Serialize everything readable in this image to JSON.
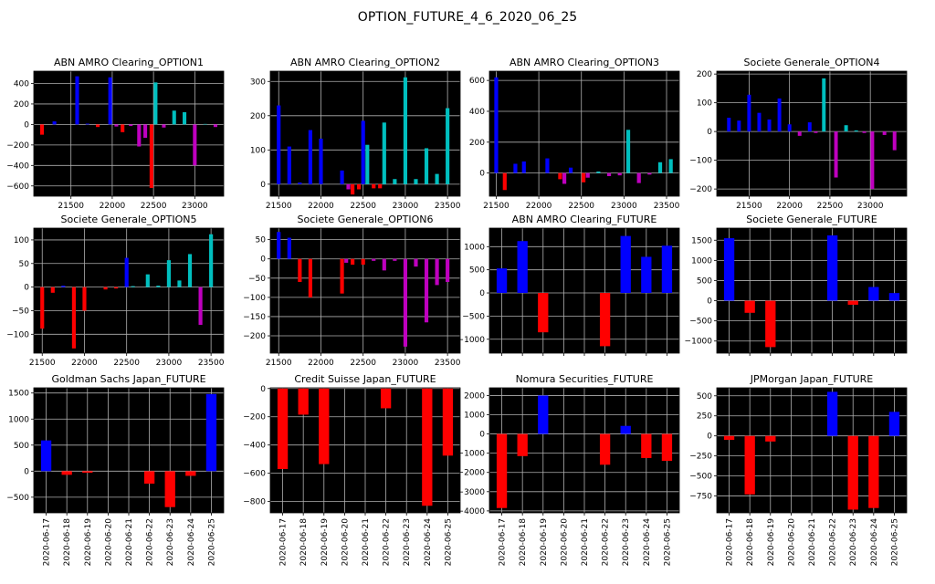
{
  "figure_title": "OPTION_FUTURE_4_6_2020_06_25",
  "colors": {
    "blue": "#0000ff",
    "red": "#ff0000",
    "magenta": "#bf00bf",
    "cyan": "#00bfbf",
    "background": "#000000",
    "grid": "#b0b0b0"
  },
  "chart_data": [
    {
      "type": "bar",
      "title": "ABN AMRO Clearing_OPTION1",
      "xlabel": "",
      "ylabel": "",
      "xlim": [
        21050,
        23350
      ],
      "ylim": [
        -700,
        520
      ],
      "bar_width": 45,
      "grid": true,
      "xticks": [
        21500,
        22000,
        22500,
        23000
      ],
      "yticks": [
        -600,
        -400,
        -200,
        0,
        200,
        400
      ],
      "bars": [
        {
          "x": 21150,
          "value": -100,
          "color": "red"
        },
        {
          "x": 21300,
          "value": 30,
          "color": "blue"
        },
        {
          "x": 21575,
          "value": 470,
          "color": "blue"
        },
        {
          "x": 21700,
          "value": 8,
          "color": "blue"
        },
        {
          "x": 21825,
          "value": -25,
          "color": "red"
        },
        {
          "x": 21975,
          "value": 460,
          "color": "blue"
        },
        {
          "x": 22050,
          "value": -20,
          "color": "magenta"
        },
        {
          "x": 22125,
          "value": -75,
          "color": "red"
        },
        {
          "x": 22225,
          "value": -15,
          "color": "magenta"
        },
        {
          "x": 22325,
          "value": -215,
          "color": "magenta"
        },
        {
          "x": 22400,
          "value": -130,
          "color": "magenta"
        },
        {
          "x": 22475,
          "value": -620,
          "color": "red"
        },
        {
          "x": 22525,
          "value": 410,
          "color": "cyan"
        },
        {
          "x": 22625,
          "value": -30,
          "color": "magenta"
        },
        {
          "x": 22750,
          "value": 135,
          "color": "cyan"
        },
        {
          "x": 22875,
          "value": 120,
          "color": "cyan"
        },
        {
          "x": 23000,
          "value": -400,
          "color": "magenta"
        },
        {
          "x": 23125,
          "value": 5,
          "color": "cyan"
        },
        {
          "x": 23250,
          "value": -25,
          "color": "magenta"
        }
      ]
    },
    {
      "type": "bar",
      "title": "ABN AMRO Clearing_OPTION2",
      "xlabel": "",
      "ylabel": "",
      "xlim": [
        21400,
        23650
      ],
      "ylim": [
        -35,
        330
      ],
      "bar_width": 45,
      "grid": true,
      "xticks": [
        21500,
        22000,
        22500,
        23000,
        23500
      ],
      "yticks": [
        0,
        100,
        200,
        300
      ],
      "bars": [
        {
          "x": 21500,
          "value": 230,
          "color": "blue"
        },
        {
          "x": 21625,
          "value": 110,
          "color": "blue"
        },
        {
          "x": 21750,
          "value": 5,
          "color": "blue"
        },
        {
          "x": 21875,
          "value": 158,
          "color": "blue"
        },
        {
          "x": 22000,
          "value": 133,
          "color": "blue"
        },
        {
          "x": 22250,
          "value": 40,
          "color": "blue"
        },
        {
          "x": 22325,
          "value": -15,
          "color": "magenta"
        },
        {
          "x": 22375,
          "value": -30,
          "color": "red"
        },
        {
          "x": 22450,
          "value": -15,
          "color": "red"
        },
        {
          "x": 22500,
          "value": 185,
          "color": "blue"
        },
        {
          "x": 22550,
          "value": 115,
          "color": "cyan"
        },
        {
          "x": 22625,
          "value": -12,
          "color": "red"
        },
        {
          "x": 22700,
          "value": -12,
          "color": "red"
        },
        {
          "x": 22750,
          "value": 180,
          "color": "cyan"
        },
        {
          "x": 22875,
          "value": 15,
          "color": "cyan"
        },
        {
          "x": 23000,
          "value": 312,
          "color": "cyan"
        },
        {
          "x": 23125,
          "value": 15,
          "color": "cyan"
        },
        {
          "x": 23250,
          "value": 105,
          "color": "cyan"
        },
        {
          "x": 23375,
          "value": 30,
          "color": "cyan"
        },
        {
          "x": 23500,
          "value": 222,
          "color": "cyan"
        }
      ]
    },
    {
      "type": "bar",
      "title": "ABN AMRO Clearing_OPTION3",
      "xlabel": "",
      "ylabel": "",
      "xlim": [
        21420,
        23650
      ],
      "ylim": [
        -150,
        660
      ],
      "bar_width": 45,
      "grid": true,
      "xticks": [
        21500,
        22000,
        22500,
        23000,
        23500
      ],
      "yticks": [
        0,
        200,
        400,
        600
      ],
      "bars": [
        {
          "x": 21500,
          "value": 620,
          "color": "blue"
        },
        {
          "x": 21600,
          "value": -110,
          "color": "red"
        },
        {
          "x": 21725,
          "value": 60,
          "color": "blue"
        },
        {
          "x": 21825,
          "value": 75,
          "color": "blue"
        },
        {
          "x": 22100,
          "value": 95,
          "color": "blue"
        },
        {
          "x": 22250,
          "value": -40,
          "color": "red"
        },
        {
          "x": 22300,
          "value": -70,
          "color": "magenta"
        },
        {
          "x": 22375,
          "value": 35,
          "color": "blue"
        },
        {
          "x": 22525,
          "value": -60,
          "color": "red"
        },
        {
          "x": 22575,
          "value": -30,
          "color": "magenta"
        },
        {
          "x": 22700,
          "value": 10,
          "color": "cyan"
        },
        {
          "x": 22825,
          "value": -20,
          "color": "magenta"
        },
        {
          "x": 22950,
          "value": -15,
          "color": "magenta"
        },
        {
          "x": 23050,
          "value": 280,
          "color": "cyan"
        },
        {
          "x": 23175,
          "value": -65,
          "color": "magenta"
        },
        {
          "x": 23300,
          "value": -10,
          "color": "magenta"
        },
        {
          "x": 23425,
          "value": 70,
          "color": "cyan"
        },
        {
          "x": 23550,
          "value": 90,
          "color": "cyan"
        }
      ]
    },
    {
      "type": "bar",
      "title": "Societe Generale_OPTION4",
      "xlabel": "",
      "ylabel": "",
      "xlim": [
        21100,
        23450
      ],
      "ylim": [
        -225,
        210
      ],
      "bar_width": 45,
      "grid": true,
      "xticks": [
        21500,
        22000,
        22500,
        23000
      ],
      "yticks": [
        -200,
        -100,
        0,
        100,
        200
      ],
      "bars": [
        {
          "x": 21250,
          "value": 48,
          "color": "blue"
        },
        {
          "x": 21375,
          "value": 38,
          "color": "blue"
        },
        {
          "x": 21500,
          "value": 128,
          "color": "blue"
        },
        {
          "x": 21625,
          "value": 65,
          "color": "blue"
        },
        {
          "x": 21750,
          "value": 42,
          "color": "blue"
        },
        {
          "x": 21875,
          "value": 115,
          "color": "blue"
        },
        {
          "x": 22000,
          "value": 25,
          "color": "blue"
        },
        {
          "x": 22125,
          "value": -15,
          "color": "magenta"
        },
        {
          "x": 22250,
          "value": 32,
          "color": "blue"
        },
        {
          "x": 22325,
          "value": -5,
          "color": "magenta"
        },
        {
          "x": 22425,
          "value": 185,
          "color": "cyan"
        },
        {
          "x": 22575,
          "value": -160,
          "color": "magenta"
        },
        {
          "x": 22700,
          "value": 22,
          "color": "cyan"
        },
        {
          "x": 22825,
          "value": 4,
          "color": "cyan"
        },
        {
          "x": 22925,
          "value": -5,
          "color": "magenta"
        },
        {
          "x": 23025,
          "value": -200,
          "color": "magenta"
        },
        {
          "x": 23175,
          "value": -12,
          "color": "magenta"
        },
        {
          "x": 23300,
          "value": -65,
          "color": "magenta"
        }
      ]
    },
    {
      "type": "bar",
      "title": "Societe Generale_OPTION5",
      "xlabel": "",
      "ylabel": "",
      "xlim": [
        21400,
        23650
      ],
      "ylim": [
        -140,
        125
      ],
      "bar_width": 45,
      "grid": true,
      "xticks": [
        21500,
        22000,
        22500,
        23000,
        23500
      ],
      "yticks": [
        -100,
        -50,
        0,
        50,
        100
      ],
      "bars": [
        {
          "x": 21500,
          "value": -88,
          "color": "red"
        },
        {
          "x": 21625,
          "value": -12,
          "color": "red"
        },
        {
          "x": 21750,
          "value": 3,
          "color": "blue"
        },
        {
          "x": 21875,
          "value": -130,
          "color": "red"
        },
        {
          "x": 22000,
          "value": -50,
          "color": "red"
        },
        {
          "x": 22250,
          "value": -5,
          "color": "red"
        },
        {
          "x": 22375,
          "value": -3,
          "color": "red"
        },
        {
          "x": 22500,
          "value": 62,
          "color": "blue"
        },
        {
          "x": 22575,
          "value": 2,
          "color": "cyan"
        },
        {
          "x": 22750,
          "value": 27,
          "color": "cyan"
        },
        {
          "x": 22875,
          "value": 3,
          "color": "cyan"
        },
        {
          "x": 23000,
          "value": 57,
          "color": "cyan"
        },
        {
          "x": 23125,
          "value": 14,
          "color": "cyan"
        },
        {
          "x": 23250,
          "value": 70,
          "color": "cyan"
        },
        {
          "x": 23375,
          "value": -80,
          "color": "magenta"
        },
        {
          "x": 23500,
          "value": 112,
          "color": "cyan"
        }
      ]
    },
    {
      "type": "bar",
      "title": "Societe Generale_OPTION6",
      "xlabel": "",
      "ylabel": "",
      "xlim": [
        21400,
        23650
      ],
      "ylim": [
        -245,
        80
      ],
      "bar_width": 45,
      "grid": true,
      "xticks": [
        21500,
        22000,
        22500,
        23000,
        23500
      ],
      "yticks": [
        -200,
        -150,
        -100,
        -50,
        0,
        50
      ],
      "bars": [
        {
          "x": 21500,
          "value": 70,
          "color": "blue"
        },
        {
          "x": 21625,
          "value": 55,
          "color": "blue"
        },
        {
          "x": 21750,
          "value": -60,
          "color": "red"
        },
        {
          "x": 21875,
          "value": -100,
          "color": "red"
        },
        {
          "x": 22250,
          "value": -90,
          "color": "red"
        },
        {
          "x": 22300,
          "value": -10,
          "color": "magenta"
        },
        {
          "x": 22375,
          "value": -15,
          "color": "red"
        },
        {
          "x": 22500,
          "value": -15,
          "color": "red"
        },
        {
          "x": 22625,
          "value": -5,
          "color": "magenta"
        },
        {
          "x": 22750,
          "value": -30,
          "color": "magenta"
        },
        {
          "x": 22875,
          "value": -5,
          "color": "magenta"
        },
        {
          "x": 23000,
          "value": -228,
          "color": "magenta"
        },
        {
          "x": 23125,
          "value": -20,
          "color": "magenta"
        },
        {
          "x": 23250,
          "value": -165,
          "color": "magenta"
        },
        {
          "x": 23375,
          "value": -68,
          "color": "magenta"
        },
        {
          "x": 23500,
          "value": -60,
          "color": "magenta"
        }
      ]
    },
    {
      "type": "bar",
      "title": "ABN AMRO Clearing_FUTURE",
      "xlabel": "",
      "ylabel": "",
      "categories": [
        "2020-06-17",
        "2020-06-18",
        "2020-06-19",
        "2020-06-20",
        "2020-06-21",
        "2020-06-22",
        "2020-06-23",
        "2020-06-24",
        "2020-06-25"
      ],
      "values": [
        530,
        1120,
        -850,
        0,
        0,
        -1150,
        1230,
        780,
        1020
      ],
      "ylim": [
        -1300,
        1400
      ],
      "yticks": [
        -1000,
        -500,
        0,
        500,
        1000
      ],
      "grid": true,
      "show_xtick_labels": false
    },
    {
      "type": "bar",
      "title": "Societe Generale_FUTURE",
      "xlabel": "",
      "ylabel": "",
      "categories": [
        "2020-06-17",
        "2020-06-18",
        "2020-06-19",
        "2020-06-20",
        "2020-06-21",
        "2020-06-22",
        "2020-06-23",
        "2020-06-24",
        "2020-06-25"
      ],
      "values": [
        1550,
        -300,
        -1150,
        0,
        0,
        1620,
        -100,
        340,
        190
      ],
      "ylim": [
        -1300,
        1800
      ],
      "yticks": [
        -1000,
        -500,
        0,
        500,
        1000,
        1500
      ],
      "grid": true,
      "show_xtick_labels": false
    },
    {
      "type": "bar",
      "title": "Goldman Sachs Japan_FUTURE",
      "xlabel": "",
      "ylabel": "",
      "categories": [
        "2020-06-17",
        "2020-06-18",
        "2020-06-19",
        "2020-06-20",
        "2020-06-21",
        "2020-06-22",
        "2020-06-23",
        "2020-06-24",
        "2020-06-25"
      ],
      "values": [
        590,
        -70,
        -30,
        0,
        0,
        -240,
        -690,
        -90,
        1480
      ],
      "ylim": [
        -800,
        1600
      ],
      "yticks": [
        -500,
        0,
        500,
        1000,
        1500
      ],
      "grid": true,
      "show_xtick_labels": true
    },
    {
      "type": "bar",
      "title": "Credit Suisse Japan_FUTURE",
      "xlabel": "",
      "ylabel": "",
      "categories": [
        "2020-06-17",
        "2020-06-18",
        "2020-06-19",
        "2020-06-20",
        "2020-06-21",
        "2020-06-22",
        "2020-06-23",
        "2020-06-24",
        "2020-06-25"
      ],
      "values": [
        -570,
        -185,
        -535,
        0,
        0,
        -140,
        0,
        -830,
        -475
      ],
      "ylim": [
        -880,
        5
      ],
      "yticks": [
        -800,
        -600,
        -400,
        -200,
        0
      ],
      "grid": true,
      "show_xtick_labels": true
    },
    {
      "type": "bar",
      "title": "Nomura Securities_FUTURE",
      "xlabel": "",
      "ylabel": "",
      "categories": [
        "2020-06-17",
        "2020-06-18",
        "2020-06-19",
        "2020-06-20",
        "2020-06-21",
        "2020-06-22",
        "2020-06-23",
        "2020-06-24",
        "2020-06-25"
      ],
      "values": [
        -3850,
        -1150,
        2000,
        0,
        0,
        -1600,
        420,
        -1250,
        -1400
      ],
      "ylim": [
        -4100,
        2400
      ],
      "yticks": [
        -4000,
        -3000,
        -2000,
        -1000,
        0,
        1000,
        2000
      ],
      "grid": true,
      "show_xtick_labels": true
    },
    {
      "type": "bar",
      "title": "JPMorgan Japan_FUTURE",
      "xlabel": "",
      "ylabel": "",
      "categories": [
        "2020-06-17",
        "2020-06-18",
        "2020-06-19",
        "2020-06-20",
        "2020-06-21",
        "2020-06-22",
        "2020-06-23",
        "2020-06-24",
        "2020-06-25"
      ],
      "values": [
        -50,
        -730,
        -70,
        0,
        0,
        550,
        -920,
        -900,
        300
      ],
      "ylim": [
        -960,
        600
      ],
      "yticks": [
        -750,
        -500,
        -250,
        0,
        250,
        500
      ],
      "grid": true,
      "show_xtick_labels": true
    }
  ]
}
